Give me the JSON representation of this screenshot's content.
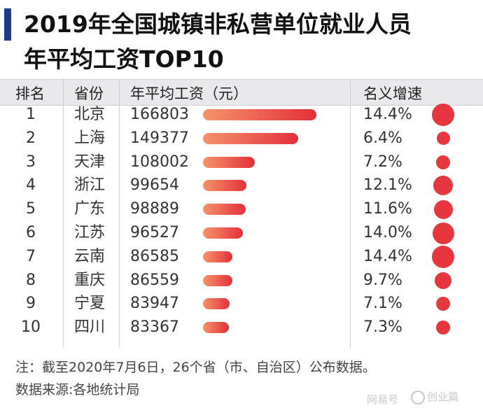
{
  "title": {
    "line1": "2019年全国城镇非私营单位就业人员",
    "line2": "年平均工资TOP10"
  },
  "headers": {
    "rank": "排名",
    "province": "省份",
    "salary": "年平均工资（元）",
    "growth": "名义增速"
  },
  "chart_data": {
    "type": "bar",
    "title": "2019年全国城镇非私营单位就业人员年平均工资TOP10",
    "categories": [
      "北京",
      "上海",
      "天津",
      "浙江",
      "广东",
      "江苏",
      "云南",
      "重庆",
      "宁夏",
      "四川"
    ],
    "ranks": [
      "1",
      "2",
      "3",
      "4",
      "5",
      "6",
      "7",
      "8",
      "9",
      "10"
    ],
    "values": [
      166803,
      149377,
      108002,
      99654,
      98889,
      96527,
      86585,
      86559,
      83947,
      83367
    ],
    "value_labels": [
      "166803",
      "149377",
      "108002",
      "99654",
      "98889",
      "96527",
      "86585",
      "86559",
      "83947",
      "83367"
    ],
    "growth_labels": [
      "14.4%",
      "6.4%",
      "7.2%",
      "12.1%",
      "11.6%",
      "14.0%",
      "14.4%",
      "9.7%",
      "7.1%",
      "7.3%"
    ],
    "growth_values": [
      14.4,
      6.4,
      7.2,
      12.1,
      11.6,
      14.0,
      14.4,
      9.7,
      7.1,
      7.3
    ],
    "colors": {
      "bar_start": "#f5936b",
      "bar_end": "#e3303a",
      "dot": "#e5373d"
    }
  },
  "notes": {
    "note": "注：截至2020年7月6日，26个省（市、自治区）公布数据。",
    "source": "数据来源:各地统计局"
  },
  "watermark": {
    "left": "网易号",
    "right": "创业篇",
    "icon": "wechat-icon"
  }
}
